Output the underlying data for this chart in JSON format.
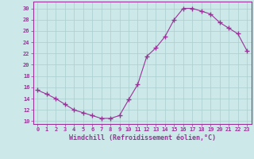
{
  "x": [
    0,
    1,
    2,
    3,
    4,
    5,
    6,
    7,
    8,
    9,
    10,
    11,
    12,
    13,
    14,
    15,
    16,
    17,
    18,
    19,
    20,
    21,
    22,
    23
  ],
  "y": [
    15.5,
    14.8,
    14.0,
    13.0,
    12.0,
    11.5,
    11.0,
    10.5,
    10.5,
    11.0,
    13.8,
    16.5,
    21.5,
    23.0,
    25.0,
    28.0,
    30.0,
    30.0,
    29.5,
    29.0,
    27.5,
    26.5,
    25.5,
    22.5
  ],
  "line_color": "#993399",
  "marker": "+",
  "markersize": 4,
  "bg_color": "#cce8e8",
  "grid_color": "#aacece",
  "axis_color": "#993399",
  "xlabel": "Windchill (Refroidissement éolien,°C)",
  "xlim": [
    -0.5,
    23.5
  ],
  "ylim": [
    9.5,
    31.2
  ],
  "yticks": [
    10,
    12,
    14,
    16,
    18,
    20,
    22,
    24,
    26,
    28,
    30
  ],
  "xticks": [
    0,
    1,
    2,
    3,
    4,
    5,
    6,
    7,
    8,
    9,
    10,
    11,
    12,
    13,
    14,
    15,
    16,
    17,
    18,
    19,
    20,
    21,
    22,
    23
  ],
  "tick_fontsize": 5.0,
  "xlabel_fontsize": 6.0
}
